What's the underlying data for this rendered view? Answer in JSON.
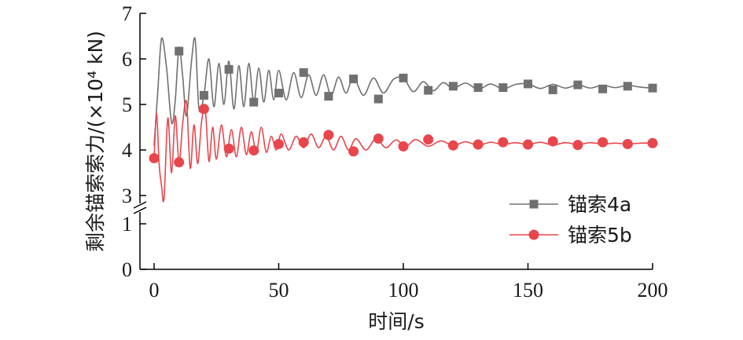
{
  "chart_data": {
    "type": "line",
    "xlabel": "时间/s",
    "ylabel": "剩余锚索索力/(×10⁴ kN)",
    "xlim": [
      -4,
      200
    ],
    "ylim": [
      0,
      7
    ],
    "axis_break": {
      "between": [
        1,
        3
      ]
    },
    "x_ticks": [
      "0",
      "50",
      "100",
      "150",
      "200"
    ],
    "y_ticks": [
      "0",
      "1",
      "3",
      "4",
      "5",
      "6",
      "7"
    ],
    "grid": false,
    "legend_position": "bottom-right",
    "series": [
      {
        "name": "锚索4a",
        "color": "#707070",
        "marker": "square",
        "marker_points": {
          "x": [
            10,
            20,
            30,
            40,
            50,
            60,
            70,
            80,
            90,
            100,
            110,
            120,
            130,
            140,
            150,
            160,
            170,
            180,
            190,
            200
          ],
          "y": [
            6.17,
            5.2,
            5.77,
            5.05,
            5.25,
            5.7,
            5.18,
            5.56,
            5.12,
            5.58,
            5.31,
            5.4,
            5.37,
            5.37,
            5.45,
            5.32,
            5.43,
            5.34,
            5.4,
            5.36
          ]
        },
        "line_points": {
          "x": [
            0,
            1.5,
            3,
            5,
            7,
            8.5,
            10,
            11.5,
            13,
            15,
            16.5,
            18,
            20,
            22,
            24,
            26,
            28,
            30,
            32,
            34,
            36,
            38,
            40,
            42,
            44,
            46,
            48,
            50,
            53,
            56,
            59,
            62,
            65,
            68,
            71,
            74,
            77,
            80,
            84,
            88,
            92,
            96,
            100,
            104,
            108,
            112,
            116,
            120,
            125,
            130,
            135,
            140,
            145,
            150,
            155,
            160,
            165,
            170,
            175,
            180,
            185,
            190,
            195,
            200
          ],
          "y": [
            4.1,
            5.3,
            6.45,
            5.8,
            4.6,
            5.1,
            6.25,
            5.6,
            4.75,
            5.95,
            6.42,
            4.9,
            5.2,
            6.0,
            4.95,
            5.9,
            5.0,
            5.95,
            4.9,
            5.85,
            4.95,
            5.9,
            5.05,
            5.8,
            5.05,
            5.75,
            5.1,
            5.75,
            5.1,
            5.7,
            5.15,
            5.65,
            5.2,
            5.65,
            5.2,
            5.6,
            5.25,
            5.6,
            5.2,
            5.58,
            5.25,
            5.55,
            5.58,
            5.28,
            5.5,
            5.3,
            5.48,
            5.35,
            5.47,
            5.33,
            5.45,
            5.34,
            5.44,
            5.45,
            5.35,
            5.44,
            5.36,
            5.43,
            5.36,
            5.42,
            5.37,
            5.42,
            5.38,
            5.36
          ]
        }
      },
      {
        "name": "锚索5b",
        "color": "#e8464c",
        "marker": "circle",
        "marker_points": {
          "x": [
            0,
            10,
            20,
            30,
            40,
            50,
            60,
            70,
            80,
            90,
            100,
            110,
            120,
            130,
            140,
            150,
            160,
            170,
            180,
            190,
            200
          ],
          "y": [
            3.82,
            3.73,
            4.9,
            4.03,
            3.99,
            4.13,
            4.17,
            4.33,
            3.97,
            4.25,
            4.08,
            4.23,
            4.1,
            4.12,
            4.17,
            4.12,
            4.19,
            4.11,
            4.17,
            4.13,
            4.15
          ]
        },
        "line_points": {
          "x": [
            0,
            1,
            2,
            3,
            4,
            5.5,
            7,
            8.5,
            10,
            11.5,
            13,
            14.5,
            16,
            17.5,
            19,
            20.5,
            22,
            23.5,
            25,
            27,
            29,
            31,
            33,
            35,
            37,
            39,
            41,
            43,
            45,
            47,
            49,
            51,
            54,
            57,
            60,
            63,
            66,
            69,
            72,
            75,
            78,
            81,
            85,
            89,
            93,
            97,
            101,
            105,
            110,
            115,
            120,
            125,
            130,
            135,
            140,
            145,
            150,
            155,
            160,
            165,
            170,
            175,
            180,
            185,
            190,
            195,
            200
          ],
          "y": [
            3.82,
            4.8,
            3.7,
            3.2,
            2.95,
            4.7,
            3.5,
            4.75,
            3.72,
            4.6,
            5.05,
            3.6,
            4.55,
            3.7,
            4.6,
            4.9,
            3.75,
            4.5,
            3.8,
            4.55,
            3.85,
            4.45,
            3.85,
            4.5,
            3.9,
            4.4,
            3.95,
            4.5,
            3.95,
            4.3,
            4.0,
            4.35,
            4.0,
            4.3,
            4.05,
            4.35,
            4.05,
            4.3,
            4.0,
            4.3,
            4.0,
            4.25,
            4.0,
            4.25,
            4.05,
            4.22,
            4.08,
            4.23,
            4.08,
            4.2,
            4.1,
            4.18,
            4.1,
            4.17,
            4.12,
            4.16,
            4.12,
            4.17,
            4.11,
            4.16,
            4.12,
            4.16,
            4.13,
            4.15,
            4.13,
            4.15,
            4.15
          ]
        }
      }
    ]
  }
}
